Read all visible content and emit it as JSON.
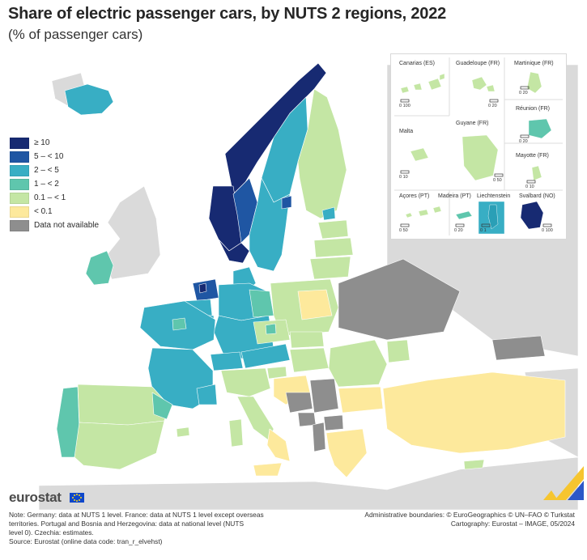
{
  "title": "Share of electric passenger cars, by NUTS 2 regions, 2022",
  "subtitle": "(% of passenger cars)",
  "legend": [
    {
      "label": "≥ 10",
      "color": "#172a72"
    },
    {
      "label": "5 – < 10",
      "color": "#1f56a3"
    },
    {
      "label": "2 – < 5",
      "color": "#38aec4"
    },
    {
      "label": "1 – < 2",
      "color": "#5fc6ad"
    },
    {
      "label": "0.1 – < 1",
      "color": "#c4e6a4"
    },
    {
      "label": "< 0.1",
      "color": "#fde99c"
    },
    {
      "label": "Data not available",
      "color": "#8e8e8e"
    }
  ],
  "insets": {
    "canarias": "Canarias (ES)",
    "guadeloupe": "Guadeloupe (FR)",
    "martinique": "Martinique (FR)",
    "reunion": "Réunion (FR)",
    "malta": "Malta",
    "guyane": "Guyane (FR)",
    "mayotte": "Mayotte (FR)",
    "acores": "Açores (PT)",
    "madeira": "Madeira (PT)",
    "liechtenstein": "Liechtenstein",
    "svalbard": "Svalbard (NO)",
    "scale_0_100": "0   100",
    "scale_0_20": "0   20",
    "scale_0_10": "0   10",
    "scale_0_50": "0   50",
    "scale_0_1": "0   1"
  },
  "logo": "eurostat",
  "notes": {
    "line1": "Note: Germany: data at NUTS 1 level. France: data at NUTS 1 level except overseas",
    "line2": "territories. Portugal and Bosnia and Herzegovina: data at national level (NUTS",
    "line3": "level 0). Czechia: estimates.",
    "line4": "Source: Eurostat (online data code: tran_r_elvehst)"
  },
  "credits": {
    "line1": "Administrative boundaries: © EuroGeographics © UN–FAO © Turkstat",
    "line2": "Cartography: Eurostat – IMAGE, 05/2024"
  },
  "colors": {
    "sea": "#ffffff",
    "non_eu": "#dadada",
    "border": "#8fb6b7"
  }
}
